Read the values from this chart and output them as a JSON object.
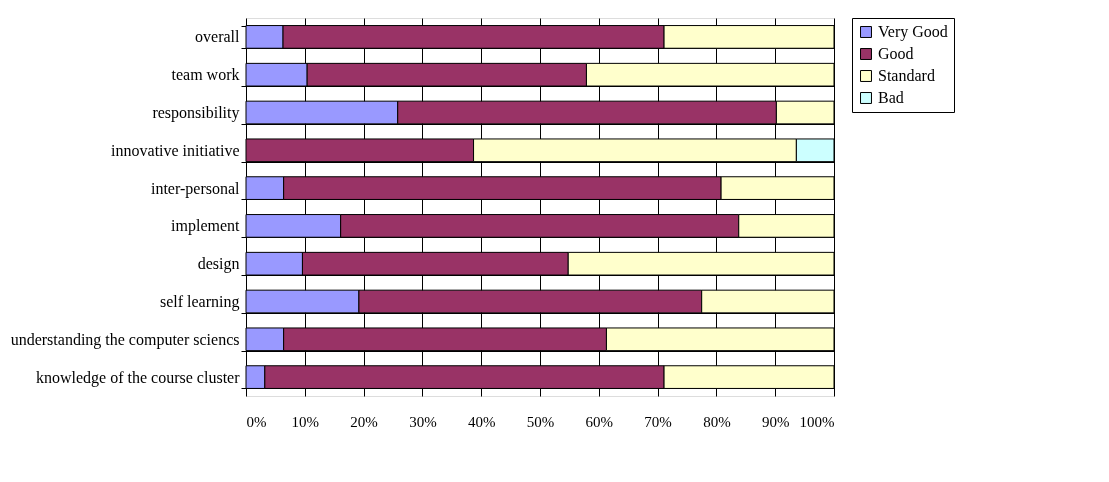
{
  "chart_data": {
    "type": "bar",
    "orientation": "horizontal",
    "stacked": true,
    "categories": [
      "overall",
      "team work",
      "responsibility",
      "innovative initiative",
      "inter-personal",
      "implement",
      "design",
      "self learning",
      "understanding the computer sciencs",
      "knowledge of the course cluster"
    ],
    "series": [
      {
        "name": "Very Good",
        "color": "#9999ff",
        "values": [
          6.3,
          10.4,
          25.8,
          null,
          6.4,
          16.1,
          9.6,
          19.2,
          6.4,
          3.2
        ]
      },
      {
        "name": "Good",
        "color": "#993366",
        "values": [
          64.8,
          47.5,
          64.4,
          38.7,
          74.4,
          67.7,
          45.2,
          58.3,
          54.9,
          67.9
        ]
      },
      {
        "name": "Standard",
        "color": "#ffffcc",
        "values": [
          28.9,
          42.1,
          9.8,
          54.9,
          19.2,
          16.2,
          45.2,
          22.5,
          38.7,
          28.9
        ]
      },
      {
        "name": "Bad",
        "color": "#ccffff",
        "values": [
          null,
          null,
          null,
          6.4,
          null,
          null,
          null,
          null,
          null,
          null
        ]
      }
    ],
    "xlim": [
      0,
      100
    ],
    "xticks": [
      {
        "value": 0,
        "label": "0%"
      },
      {
        "value": 10,
        "label": "10%"
      },
      {
        "value": 20,
        "label": "20%"
      },
      {
        "value": 30,
        "label": "30%"
      },
      {
        "value": 40,
        "label": "40%"
      },
      {
        "value": 50,
        "label": "50%"
      },
      {
        "value": 60,
        "label": "60%"
      },
      {
        "value": 70,
        "label": "70%"
      },
      {
        "value": 80,
        "label": "80%"
      },
      {
        "value": 90,
        "label": "90%"
      },
      {
        "value": 100,
        "label": "100%"
      }
    ],
    "grid": true,
    "legend": "right"
  }
}
